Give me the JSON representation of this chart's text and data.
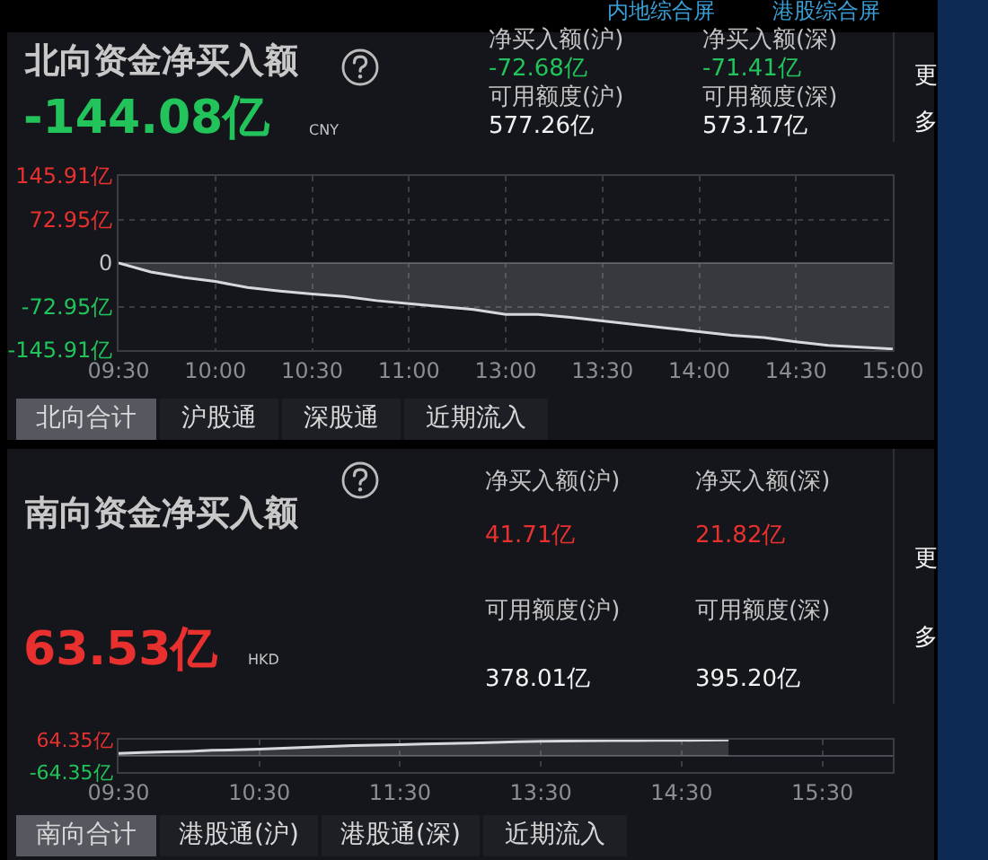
{
  "chart_data": [
    {
      "type": "area",
      "title": "北向资金净买入额",
      "categories": [
        "09:30",
        null,
        null,
        "10:00",
        null,
        null,
        "10:30",
        null,
        null,
        "11:00",
        null,
        null,
        "13:00",
        null,
        null,
        "13:30",
        null,
        null,
        "14:00",
        null,
        null,
        "14:30",
        null,
        null,
        "15:00"
      ],
      "series": [
        {
          "color": "#d5d9de",
          "values": [
            0,
            -15,
            -24,
            -31,
            -41,
            -47,
            -52,
            -56,
            -63,
            -68,
            -73,
            -78,
            -86,
            -86,
            -91,
            -97,
            -103,
            -109,
            -115,
            -121,
            -125,
            -132,
            -138,
            -141,
            -144
          ]
        }
      ],
      "ylim": [
        -145.91,
        145.91
      ],
      "yticks": [
        {
          "value": 145.91,
          "label": "145.91亿"
        },
        {
          "value": 72.95,
          "label": "72.95亿"
        },
        0,
        {
          "value": -72.95,
          "label": "-72.95亿"
        },
        {
          "value": -145.91,
          "label": "-145.91亿"
        }
      ],
      "grid": true,
      "annotations": [
        "内地综合屏",
        "港股综合屏",
        "-144.08亿",
        "CNY",
        "净买入额(沪)",
        "-72.68亿",
        "净买入额(深)",
        "-71.41亿",
        "可用额度(沪)",
        "577.26亿",
        "可用额度(深)",
        "573.17亿",
        "更多",
        "北向合计",
        "沪股通",
        "深股通",
        "近期流入"
      ]
    },
    {
      "type": "area",
      "title": "南向资金净买入额",
      "categories": [
        "09:30",
        null,
        null,
        null,
        null,
        null,
        "10:30",
        null,
        null,
        null,
        null,
        null,
        "11:30",
        null,
        null,
        null,
        null,
        null,
        "13:30",
        null,
        null,
        null,
        null,
        null,
        "14:30",
        null,
        null,
        null,
        null,
        null,
        "15:30",
        null,
        null,
        null
      ],
      "series": [
        {
          "color": "#d5d9de",
          "values": [
            10,
            13,
            16,
            18,
            22,
            24,
            27,
            30,
            34,
            38,
            41,
            43,
            45,
            47,
            49,
            51,
            54,
            56,
            58,
            59,
            60,
            61,
            61,
            62,
            62,
            63,
            63.5,
            null,
            null,
            null,
            null,
            null,
            null,
            null
          ]
        }
      ],
      "ylim": [
        -64.35,
        64.35
      ],
      "yticks": [
        {
          "value": 64.35,
          "label": "64.35亿"
        },
        {
          "value": -64.35,
          "label": "-64.35亿"
        }
      ],
      "grid": true,
      "annotations": [
        "63.53亿",
        "HKD",
        "净买入额(沪)",
        "41.71亿",
        "净买入额(深)",
        "21.82亿",
        "可用额度(沪)",
        "378.01亿",
        "可用额度(深)",
        "395.20亿",
        "更多",
        "南向合计",
        "港股通(沪)",
        "港股通(深)",
        "近期流入"
      ]
    }
  ]
}
